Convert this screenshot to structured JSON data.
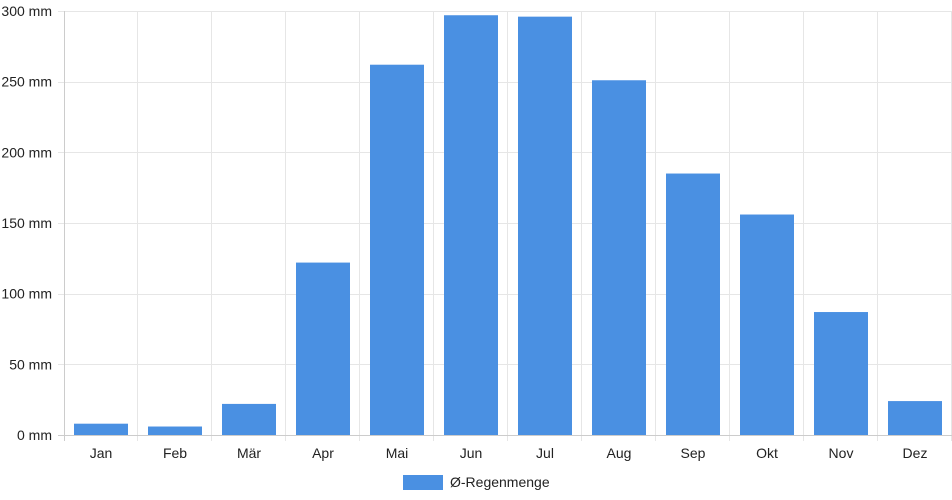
{
  "chart_data": {
    "type": "bar",
    "categories": [
      "Jan",
      "Feb",
      "Mär",
      "Apr",
      "Mai",
      "Jun",
      "Jul",
      "Aug",
      "Sep",
      "Okt",
      "Nov",
      "Dez"
    ],
    "series": [
      {
        "name": "Ø-Regenmenge",
        "values": [
          8,
          6,
          22,
          122,
          262,
          297,
          296,
          251,
          185,
          156,
          87,
          24
        ],
        "color": "#4a90e2"
      }
    ],
    "y_ticks": [
      {
        "value": 0,
        "label": "0 mm"
      },
      {
        "value": 50,
        "label": "50 mm"
      },
      {
        "value": 100,
        "label": "100 mm"
      },
      {
        "value": 150,
        "label": "150 mm"
      },
      {
        "value": 200,
        "label": "200 mm"
      },
      {
        "value": 250,
        "label": "250 mm"
      },
      {
        "value": 300,
        "label": "300 mm"
      }
    ],
    "ylim": [
      0,
      300
    ],
    "grid": true,
    "legend_position": "bottom-center",
    "colors": {
      "grid": "#e6e6e6",
      "axis": "#cccccc"
    }
  }
}
